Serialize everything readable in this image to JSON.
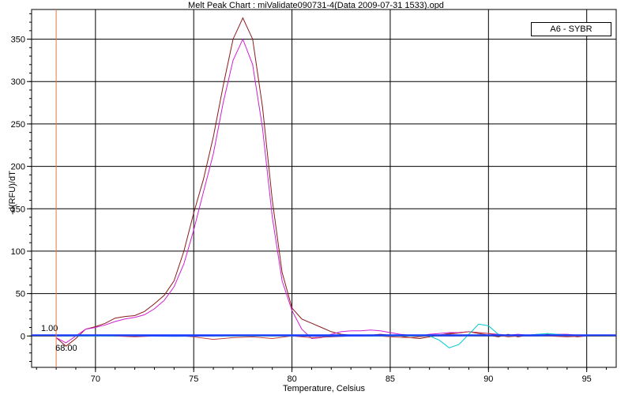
{
  "chart_data": {
    "type": "line",
    "title": "Melt Peak Chart : miValidate090731-4(Data 2009-07-31 1533).opd",
    "xlabel": "Temperature, Celsius",
    "ylabel": "-d(RFU)/dT",
    "xlim": [
      66.75,
      96.5
    ],
    "ylim": [
      -37,
      385
    ],
    "xticks": [
      70,
      75,
      80,
      85,
      90,
      95
    ],
    "yticks": [
      0,
      50,
      100,
      150,
      200,
      250,
      300,
      350
    ],
    "grid": true,
    "legend": {
      "position": "top-right",
      "entries": [
        "A6 - SYBR"
      ]
    },
    "threshold": {
      "value": 1.0,
      "label": "1.00",
      "color": "#1a3fff"
    },
    "marker": {
      "temperature": 68.0,
      "label": "68.00",
      "color": "#e07a3a"
    },
    "series": [
      {
        "color": "#8b1a1a",
        "x": [
          68.0,
          68.5,
          69.0,
          69.5,
          70.0,
          70.5,
          71.0,
          71.5,
          72.0,
          72.5,
          73.0,
          73.5,
          74.0,
          74.5,
          75.0,
          75.5,
          76.0,
          76.5,
          77.0,
          77.5,
          78.0,
          78.5,
          79.0,
          79.5,
          80.0,
          80.5,
          81.0,
          81.5,
          82.0,
          82.5,
          83.0,
          83.5,
          84.0,
          84.5,
          85.0,
          85.5,
          86.0,
          86.5,
          87.0,
          87.5,
          88.0,
          88.5,
          89.0,
          89.5,
          90.0,
          90.5,
          91.0,
          91.5,
          92.0,
          92.5,
          93.0,
          93.5,
          94.0,
          94.5,
          95.0
        ],
        "y": [
          -2,
          -12,
          -3,
          8,
          11,
          15,
          21,
          23,
          24,
          29,
          38,
          48,
          65,
          100,
          145,
          185,
          235,
          295,
          350,
          375,
          350,
          270,
          160,
          75,
          33,
          20,
          15,
          10,
          5,
          2,
          1,
          0,
          1,
          2,
          1,
          0,
          -2,
          -3,
          -1,
          1,
          3,
          4,
          5,
          3,
          1,
          -1,
          2,
          -1,
          1,
          0,
          2,
          0,
          1,
          -1,
          0
        ]
      },
      {
        "color": "#d020d0",
        "x": [
          68.0,
          68.5,
          69.0,
          69.5,
          70.0,
          70.5,
          71.0,
          71.5,
          72.0,
          72.5,
          73.0,
          73.5,
          74.0,
          74.5,
          75.0,
          75.5,
          76.0,
          76.5,
          77.0,
          77.5,
          78.0,
          78.5,
          79.0,
          79.5,
          80.0,
          80.5,
          81.0,
          81.5,
          82.0,
          82.5,
          83.0,
          83.5,
          84.0,
          84.5,
          85.0,
          85.5,
          86.0,
          86.5,
          87.0,
          87.5,
          88.0,
          88.5,
          89.0,
          89.5,
          90.0,
          90.5,
          91.0,
          91.5,
          92.0,
          92.5,
          93.0,
          93.5,
          94.0,
          94.5,
          95.0
        ],
        "y": [
          -2,
          -8,
          0,
          8,
          10,
          13,
          17,
          20,
          22,
          25,
          32,
          42,
          58,
          85,
          125,
          170,
          215,
          275,
          325,
          350,
          320,
          245,
          140,
          65,
          30,
          8,
          -3,
          -2,
          2,
          5,
          6,
          6,
          7,
          6,
          4,
          2,
          1,
          0,
          2,
          3,
          4,
          4,
          5,
          4,
          3,
          2,
          1,
          2,
          1,
          2,
          1,
          2,
          2,
          1,
          1
        ]
      },
      {
        "color": "#c04040",
        "x": [
          68.0,
          69.0,
          70.0,
          71.0,
          72.0,
          73.0,
          74.0,
          75.0,
          76.0,
          77.0,
          78.0,
          79.0,
          80.0,
          81.0,
          82.0,
          83.0,
          84.0,
          85.0,
          86.0,
          87.0,
          88.0,
          89.0,
          90.0,
          91.0,
          92.0,
          93.0,
          94.0,
          95.0
        ],
        "y": [
          0,
          0,
          1,
          0,
          -1,
          0,
          1,
          -1,
          -4,
          -2,
          -1,
          -3,
          0,
          -2,
          -1,
          0,
          1,
          -1,
          -2,
          0,
          2,
          5,
          3,
          -1,
          1,
          0,
          -1,
          0
        ]
      },
      {
        "color": "#00c8d0",
        "x": [
          68.0,
          69.0,
          70.0,
          71.0,
          72.0,
          73.0,
          74.0,
          75.0,
          76.0,
          77.0,
          78.0,
          79.0,
          80.0,
          81.0,
          82.0,
          83.0,
          84.0,
          85.0,
          86.0,
          87.0,
          87.5,
          88.0,
          88.5,
          89.0,
          89.5,
          90.0,
          90.5,
          91.0,
          92.0,
          93.0,
          94.0,
          95.0
        ],
        "y": [
          0,
          0,
          0,
          0,
          1,
          0,
          0,
          0,
          0,
          0,
          0,
          0,
          0,
          0,
          0,
          1,
          0,
          0,
          0,
          0,
          -5,
          -14,
          -10,
          2,
          14,
          12,
          2,
          0,
          1,
          3,
          1,
          0
        ]
      },
      {
        "color": "#1a3fff",
        "x": [
          68.0,
          70.0,
          72.0,
          74.0,
          76.0,
          78.0,
          80.0,
          82.0,
          84.0,
          86.0,
          88.0,
          90.0,
          92.0,
          94.0,
          95.0
        ],
        "y": [
          0,
          0.5,
          0,
          -0.5,
          0,
          0.5,
          0,
          -0.5,
          0,
          0.5,
          0,
          0.5,
          0,
          0.5,
          0
        ]
      }
    ]
  }
}
